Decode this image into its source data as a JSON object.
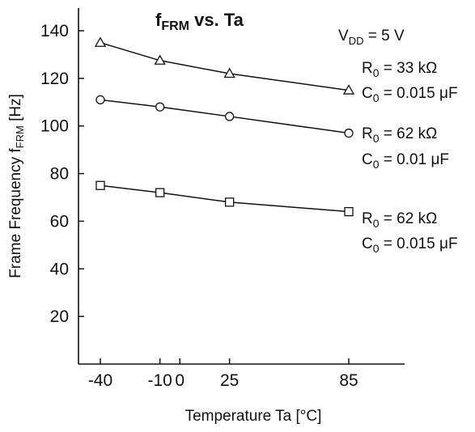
{
  "chart_data": {
    "type": "line",
    "title_main": "f",
    "title_sub": "FRM",
    "title_rest": " vs. Ta",
    "xlabel": "Temperature Ta [°C]",
    "ylabel_main": "Frame Frequency f",
    "ylabel_sub": "FRM",
    "ylabel_rest": " [Hz]",
    "x_ticks": [
      -40,
      -10,
      0,
      25,
      85
    ],
    "x_tick_labels": [
      "-40",
      "-10",
      "0",
      "25",
      "85"
    ],
    "y_ticks": [
      20,
      40,
      60,
      80,
      100,
      120,
      140
    ],
    "xlim": [
      -50,
      115
    ],
    "ylim": [
      0,
      150
    ],
    "grid": false,
    "vdd": {
      "main": "V",
      "sub": "DD",
      "rest": " = 5 V"
    },
    "series": [
      {
        "marker": "triangle",
        "x": [
          -40,
          -10,
          25,
          85
        ],
        "values": [
          135,
          127.5,
          122,
          115
        ],
        "r_label": {
          "main": "R",
          "sub": "0",
          "rest": " = 33 kΩ"
        },
        "c_label": {
          "main": "C",
          "sub": "0",
          "rest": " = 0.015 μF"
        }
      },
      {
        "marker": "circle",
        "x": [
          -40,
          -10,
          25,
          85
        ],
        "values": [
          111,
          108,
          104,
          97
        ],
        "r_label": {
          "main": "R",
          "sub": "0",
          "rest": " = 62 kΩ"
        },
        "c_label": {
          "main": "C",
          "sub": "0",
          "rest": " = 0.01 μF"
        }
      },
      {
        "marker": "square",
        "x": [
          -40,
          -10,
          25,
          85
        ],
        "values": [
          75,
          72,
          68,
          64
        ],
        "r_label": {
          "main": "R",
          "sub": "0",
          "rest": " = 62 kΩ"
        },
        "c_label": {
          "main": "C",
          "sub": "0",
          "rest": " = 0.015 μF"
        }
      }
    ]
  }
}
